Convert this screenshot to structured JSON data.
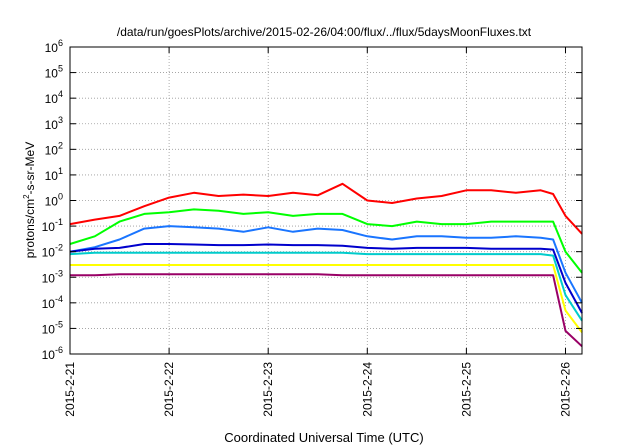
{
  "chart_data": {
    "type": "line",
    "title": "/data/run/goesPlots/archive/2015-02-26/04:00/flux/../flux/5daysMoonFluxes.txt",
    "xlabel": "Coordinated Universal Time (UTC)",
    "ylabel": {
      "prefix": "protons/cm",
      "sup": "2",
      "suffix": "-s-sr-MeV"
    },
    "y_scale": "log",
    "ylim_exp": [
      -6,
      6
    ],
    "ytick_exps": [
      -6,
      -5,
      -4,
      -3,
      -2,
      -1,
      0,
      1,
      2,
      3,
      4,
      5,
      6
    ],
    "ytick_base": "10",
    "xlim": [
      "2015-02-21T00:00",
      "2015-02-26T04:00"
    ],
    "xticks": [
      "2015-2-21",
      "2015-2-22",
      "2015-2-23",
      "2015-2-24",
      "2015-2-25",
      "2015-2-26"
    ],
    "grid": true,
    "x": [
      "2015-02-21T00:00",
      "2015-02-21T06:00",
      "2015-02-21T12:00",
      "2015-02-21T18:00",
      "2015-02-22T00:00",
      "2015-02-22T06:00",
      "2015-02-22T12:00",
      "2015-02-22T18:00",
      "2015-02-23T00:00",
      "2015-02-23T06:00",
      "2015-02-23T12:00",
      "2015-02-23T18:00",
      "2015-02-24T00:00",
      "2015-02-24T06:00",
      "2015-02-24T12:00",
      "2015-02-24T18:00",
      "2015-02-25T00:00",
      "2015-02-25T06:00",
      "2015-02-25T12:00",
      "2015-02-25T18:00",
      "2015-02-25T21:00",
      "2015-02-26T00:00",
      "2015-02-26T04:00"
    ],
    "series": [
      {
        "color": "#ff0000",
        "values": [
          0.12,
          0.18,
          0.25,
          0.6,
          1.3,
          2.0,
          1.5,
          1.7,
          1.5,
          2.0,
          1.6,
          4.5,
          1.0,
          0.8,
          1.2,
          1.5,
          2.5,
          2.5,
          2.0,
          2.5,
          1.8,
          0.25,
          0.05
        ]
      },
      {
        "color": "#00ff00",
        "values": [
          0.02,
          0.04,
          0.15,
          0.3,
          0.35,
          0.45,
          0.4,
          0.3,
          0.35,
          0.25,
          0.3,
          0.3,
          0.12,
          0.1,
          0.15,
          0.12,
          0.12,
          0.15,
          0.15,
          0.15,
          0.15,
          0.01,
          0.0015
        ]
      },
      {
        "color": "#1a75ff",
        "values": [
          0.01,
          0.015,
          0.03,
          0.08,
          0.1,
          0.09,
          0.08,
          0.06,
          0.09,
          0.06,
          0.08,
          0.07,
          0.04,
          0.03,
          0.04,
          0.04,
          0.035,
          0.035,
          0.04,
          0.035,
          0.03,
          0.0015,
          0.0001
        ]
      },
      {
        "color": "#0000cc",
        "values": [
          0.01,
          0.013,
          0.014,
          0.02,
          0.02,
          0.019,
          0.018,
          0.018,
          0.019,
          0.018,
          0.018,
          0.017,
          0.014,
          0.013,
          0.014,
          0.014,
          0.014,
          0.013,
          0.013,
          0.013,
          0.012,
          0.0006,
          4e-05
        ]
      },
      {
        "color": "#00cccc",
        "values": [
          0.008,
          0.009,
          0.009,
          0.009,
          0.009,
          0.009,
          0.009,
          0.009,
          0.009,
          0.009,
          0.009,
          0.009,
          0.008,
          0.008,
          0.008,
          0.008,
          0.008,
          0.008,
          0.008,
          0.008,
          0.007,
          0.0002,
          2e-05
        ]
      },
      {
        "color": "#ffff00",
        "values": [
          0.003,
          0.003,
          0.003,
          0.003,
          0.003,
          0.003,
          0.003,
          0.003,
          0.003,
          0.003,
          0.003,
          0.003,
          0.003,
          0.003,
          0.003,
          0.003,
          0.003,
          0.003,
          0.003,
          0.003,
          0.003,
          5e-05,
          7e-06
        ]
      },
      {
        "color": "#990066",
        "values": [
          0.0012,
          0.0012,
          0.0013,
          0.0013,
          0.0013,
          0.0013,
          0.0013,
          0.0013,
          0.0013,
          0.0013,
          0.0013,
          0.0012,
          0.0012,
          0.0012,
          0.0012,
          0.0012,
          0.0012,
          0.0012,
          0.0012,
          0.0012,
          0.0012,
          8e-06,
          2e-06
        ]
      }
    ]
  }
}
